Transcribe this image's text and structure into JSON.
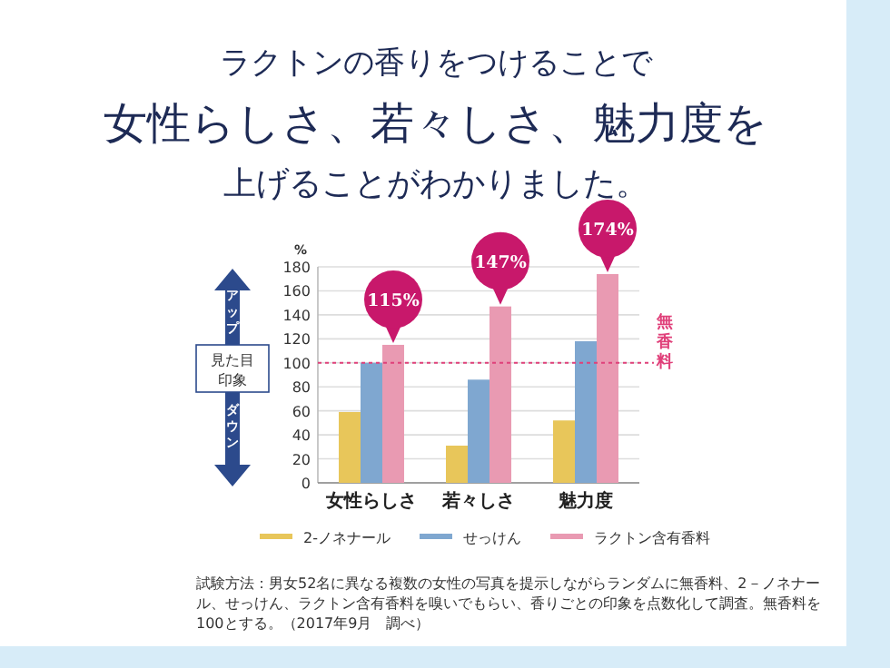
{
  "chart_data": {
    "type": "bar",
    "title": "ラクトンの香りをつけることで",
    "subtitle": "女性らしさ、若々しさ、魅力度を",
    "ylabel": "%",
    "categories": [
      "女性らしさ",
      "若々しさ",
      "魅力度"
    ],
    "series": [
      {
        "name": "2-ノネナール",
        "color": "#e8c65a",
        "values": [
          59,
          31,
          52
        ]
      },
      {
        "name": "せっけん",
        "color": "#7fa7d0",
        "values": [
          100,
          86,
          118
        ]
      },
      {
        "name": "ラクトン含有香料",
        "color": "#e99ab2",
        "values": [
          115,
          147,
          174
        ],
        "value_labels": [
          "115%",
          "147%",
          "174%"
        ]
      }
    ],
    "ylim": [
      0,
      180
    ],
    "yticks": [
      0,
      20,
      40,
      60,
      80,
      100,
      120,
      140,
      160,
      180
    ],
    "grid": "y",
    "legend": "bottom",
    "ref_lines": [
      {
        "axis": "y",
        "value": 100,
        "label": "無香料",
        "color": "#e0407a",
        "line_style": "dotted"
      }
    ],
    "annotations": [
      "上げることがわかりました。",
      "アップ",
      "見た目",
      "印象",
      "ダウン",
      "試験方法：男女52名に異なる複数の女性の写真を提示しながらランダムに無香料、2－ノネナール、せっけん、ラクトン含有香料を嗅いでもらい、香りごとの印象を点数化して調査。無香料を100とする。（2017年9月　調べ）"
    ]
  }
}
